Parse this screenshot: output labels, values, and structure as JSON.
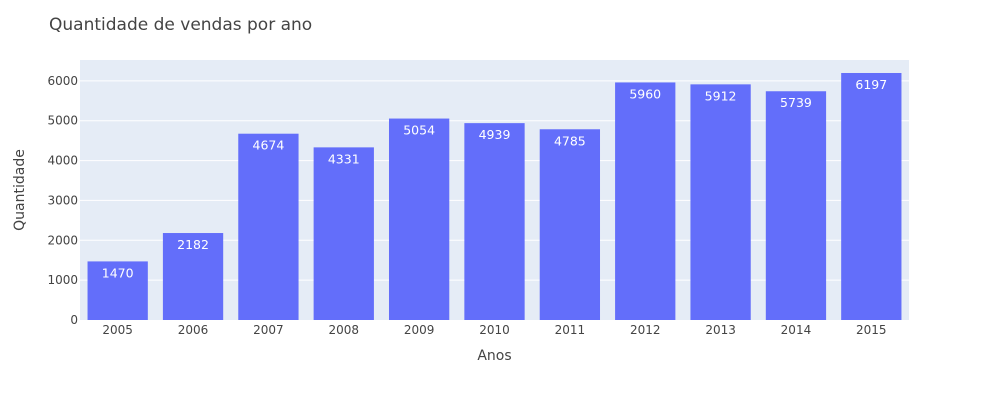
{
  "chart_data": {
    "type": "bar",
    "title": "Quantidade de vendas por ano",
    "xlabel": "Anos",
    "ylabel": "Quantidade",
    "categories": [
      "2005",
      "2006",
      "2007",
      "2008",
      "2009",
      "2010",
      "2011",
      "2012",
      "2013",
      "2014",
      "2015"
    ],
    "values": [
      1470,
      2182,
      4674,
      4331,
      5054,
      4939,
      4785,
      5960,
      5912,
      5739,
      6197
    ],
    "data_labels": [
      "1470",
      "2182",
      "4674",
      "4331",
      "5054",
      "4939",
      "4785",
      "5960",
      "5912",
      "5739",
      "6197"
    ],
    "ylim": [
      0,
      6523
    ],
    "yticks": [
      0,
      1000,
      2000,
      3000,
      4000,
      5000,
      6000
    ],
    "ytick_labels": [
      "0",
      "1000",
      "2000",
      "3000",
      "4000",
      "5000",
      "6000"
    ],
    "grid": true,
    "legend": "none",
    "colors": {
      "bar": "#636efa",
      "plot_background": "#e5ecf6",
      "gridline": "#ffffff",
      "text": "#444444",
      "data_label": "#ffffff"
    }
  }
}
